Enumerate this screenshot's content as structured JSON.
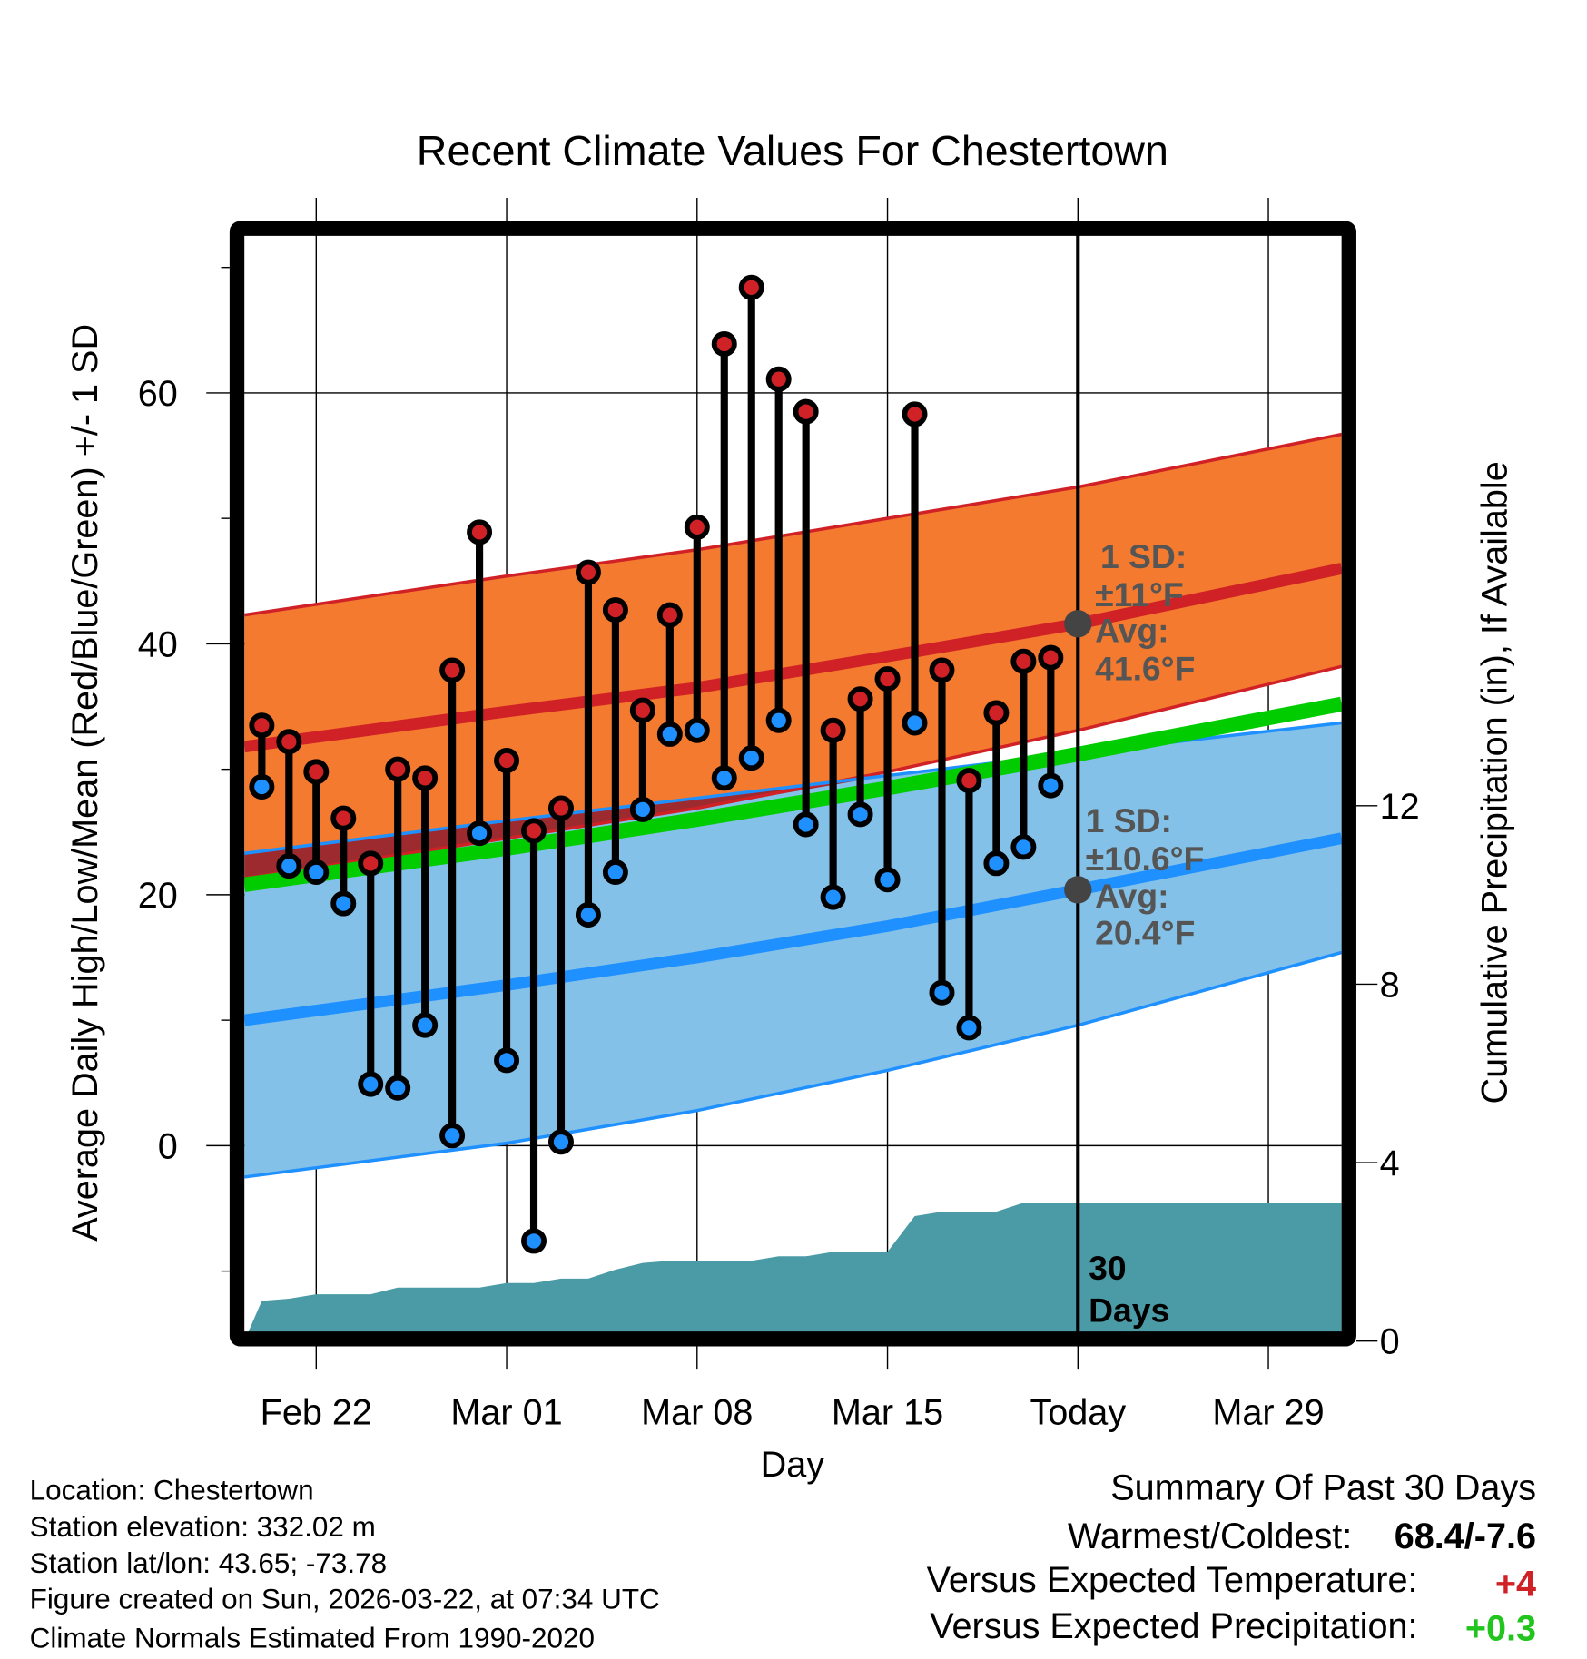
{
  "chart_data": {
    "type": "line",
    "title": "Recent Climate Values For Chestertown",
    "xlabel": "Day",
    "ylabel": "Average Daily High/Low/Mean (Red/Blue/Green) +/- 1 SD",
    "y2label": "Cumulative Precipitation (in), If Available",
    "x_unit": "days relative to Feb 22",
    "xlim": [
      -2.64,
      37.69
    ],
    "ylim": [
      -14.9,
      72.6
    ],
    "y2lim": [
      0,
      24.8
    ],
    "grid": true,
    "x_ticks": [
      {
        "day": 0,
        "label": "Feb 22"
      },
      {
        "day": 7,
        "label": "Mar 01"
      },
      {
        "day": 14,
        "label": "Mar 08"
      },
      {
        "day": 21,
        "label": "Mar 15"
      },
      {
        "day": 28,
        "label": "Today"
      },
      {
        "day": 35,
        "label": "Mar 29"
      }
    ],
    "y_ticks": [
      0,
      20,
      40,
      60
    ],
    "y_minor_ticks": [
      -10,
      10,
      30,
      50,
      70
    ],
    "y2_ticks": [
      0,
      4,
      8,
      12
    ],
    "today_day": 28,
    "days": [
      -2,
      -1,
      0,
      1,
      2,
      3,
      4,
      5,
      6,
      7,
      8,
      9,
      10,
      11,
      12,
      13,
      14,
      15,
      16,
      17,
      18,
      19,
      20,
      21,
      22,
      23,
      24,
      25,
      26,
      27
    ],
    "highs": [
      33.5,
      32.2,
      29.8,
      26.1,
      22.5,
      30.0,
      29.3,
      37.9,
      48.9,
      30.7,
      25.1,
      26.9,
      45.7,
      42.7,
      34.7,
      42.3,
      49.3,
      63.9,
      68.4,
      61.1,
      58.5,
      33.1,
      35.6,
      37.2,
      58.3,
      37.9,
      29.1,
      34.5,
      38.6,
      38.9
    ],
    "lows": [
      28.6,
      22.3,
      21.8,
      19.3,
      4.9,
      4.6,
      9.6,
      0.8,
      24.9,
      6.8,
      -7.6,
      0.3,
      18.4,
      21.8,
      26.8,
      32.8,
      33.1,
      29.3,
      30.9,
      33.9,
      25.6,
      19.8,
      26.4,
      21.2,
      33.7,
      12.2,
      9.4,
      22.5,
      23.8,
      28.7
    ],
    "normals": {
      "days": [
        -2.64,
        7,
        14,
        21,
        28,
        37.69
      ],
      "high_mean": [
        31.8,
        34.6,
        36.5,
        39.0,
        41.6,
        46.0
      ],
      "high_upper": [
        42.3,
        45.4,
        47.5,
        50.0,
        52.5,
        56.7
      ],
      "high_lower": [
        21.3,
        24.5,
        26.9,
        29.8,
        33.1,
        38.2
      ],
      "low_mean": [
        10.0,
        12.8,
        15.0,
        17.5,
        20.4,
        24.5
      ],
      "low_upper": [
        23.3,
        25.9,
        27.7,
        29.5,
        31.3,
        33.7
      ],
      "low_lower": [
        -2.5,
        0.2,
        2.8,
        6.0,
        9.6,
        15.4
      ],
      "mean": [
        20.8,
        23.7,
        26.0,
        28.5,
        31.2,
        35.2
      ]
    },
    "precip": {
      "days": [
        -2.64,
        -2,
        -1,
        0,
        2,
        3,
        6,
        7,
        8,
        9,
        10,
        11,
        12,
        13,
        16,
        17,
        18,
        19,
        21,
        22,
        23,
        25,
        26,
        27,
        37.69
      ],
      "values": [
        0,
        0.9,
        0.95,
        1.05,
        1.05,
        1.2,
        1.2,
        1.3,
        1.3,
        1.4,
        1.4,
        1.6,
        1.75,
        1.8,
        1.8,
        1.9,
        1.9,
        2.0,
        2.0,
        2.8,
        2.9,
        2.9,
        3.1,
        3.1,
        3.1
      ]
    },
    "annotations": {
      "high_sd": [
        "1 SD:",
        "±11°F",
        "Avg:",
        "41.6°F"
      ],
      "low_sd": [
        "1 SD:",
        "±10.6°F",
        "Avg:",
        "20.4°F"
      ],
      "window": [
        "30",
        "Days"
      ]
    },
    "colors": {
      "high_band": "#f37a2e",
      "high_line": "#d02126",
      "low_band": "#84c1e8",
      "low_line": "#1e90ff",
      "mean_line": "#00cc00",
      "precip": "#4a9ba6",
      "overlap": "#a01a1a",
      "annotation": "#555555"
    }
  },
  "footer": {
    "location": "Location: Chestertown",
    "elevation": "Station elevation: 332.02 m",
    "latlon": "Station lat/lon: 43.65; -73.78",
    "created": "Figure created on Sun, 2026-03-22, at 07:34 UTC",
    "normals": "Climate Normals Estimated From 1990-2020"
  },
  "summary": {
    "title": "Summary Of Past 30 Days",
    "warmest_label": "Warmest/Coldest:",
    "warmest_value": "68.4/-7.6",
    "temp_label": "Versus Expected Temperature:",
    "temp_value": "+4",
    "precip_label": "Versus Expected Precipitation:",
    "precip_value": "+0.3"
  }
}
